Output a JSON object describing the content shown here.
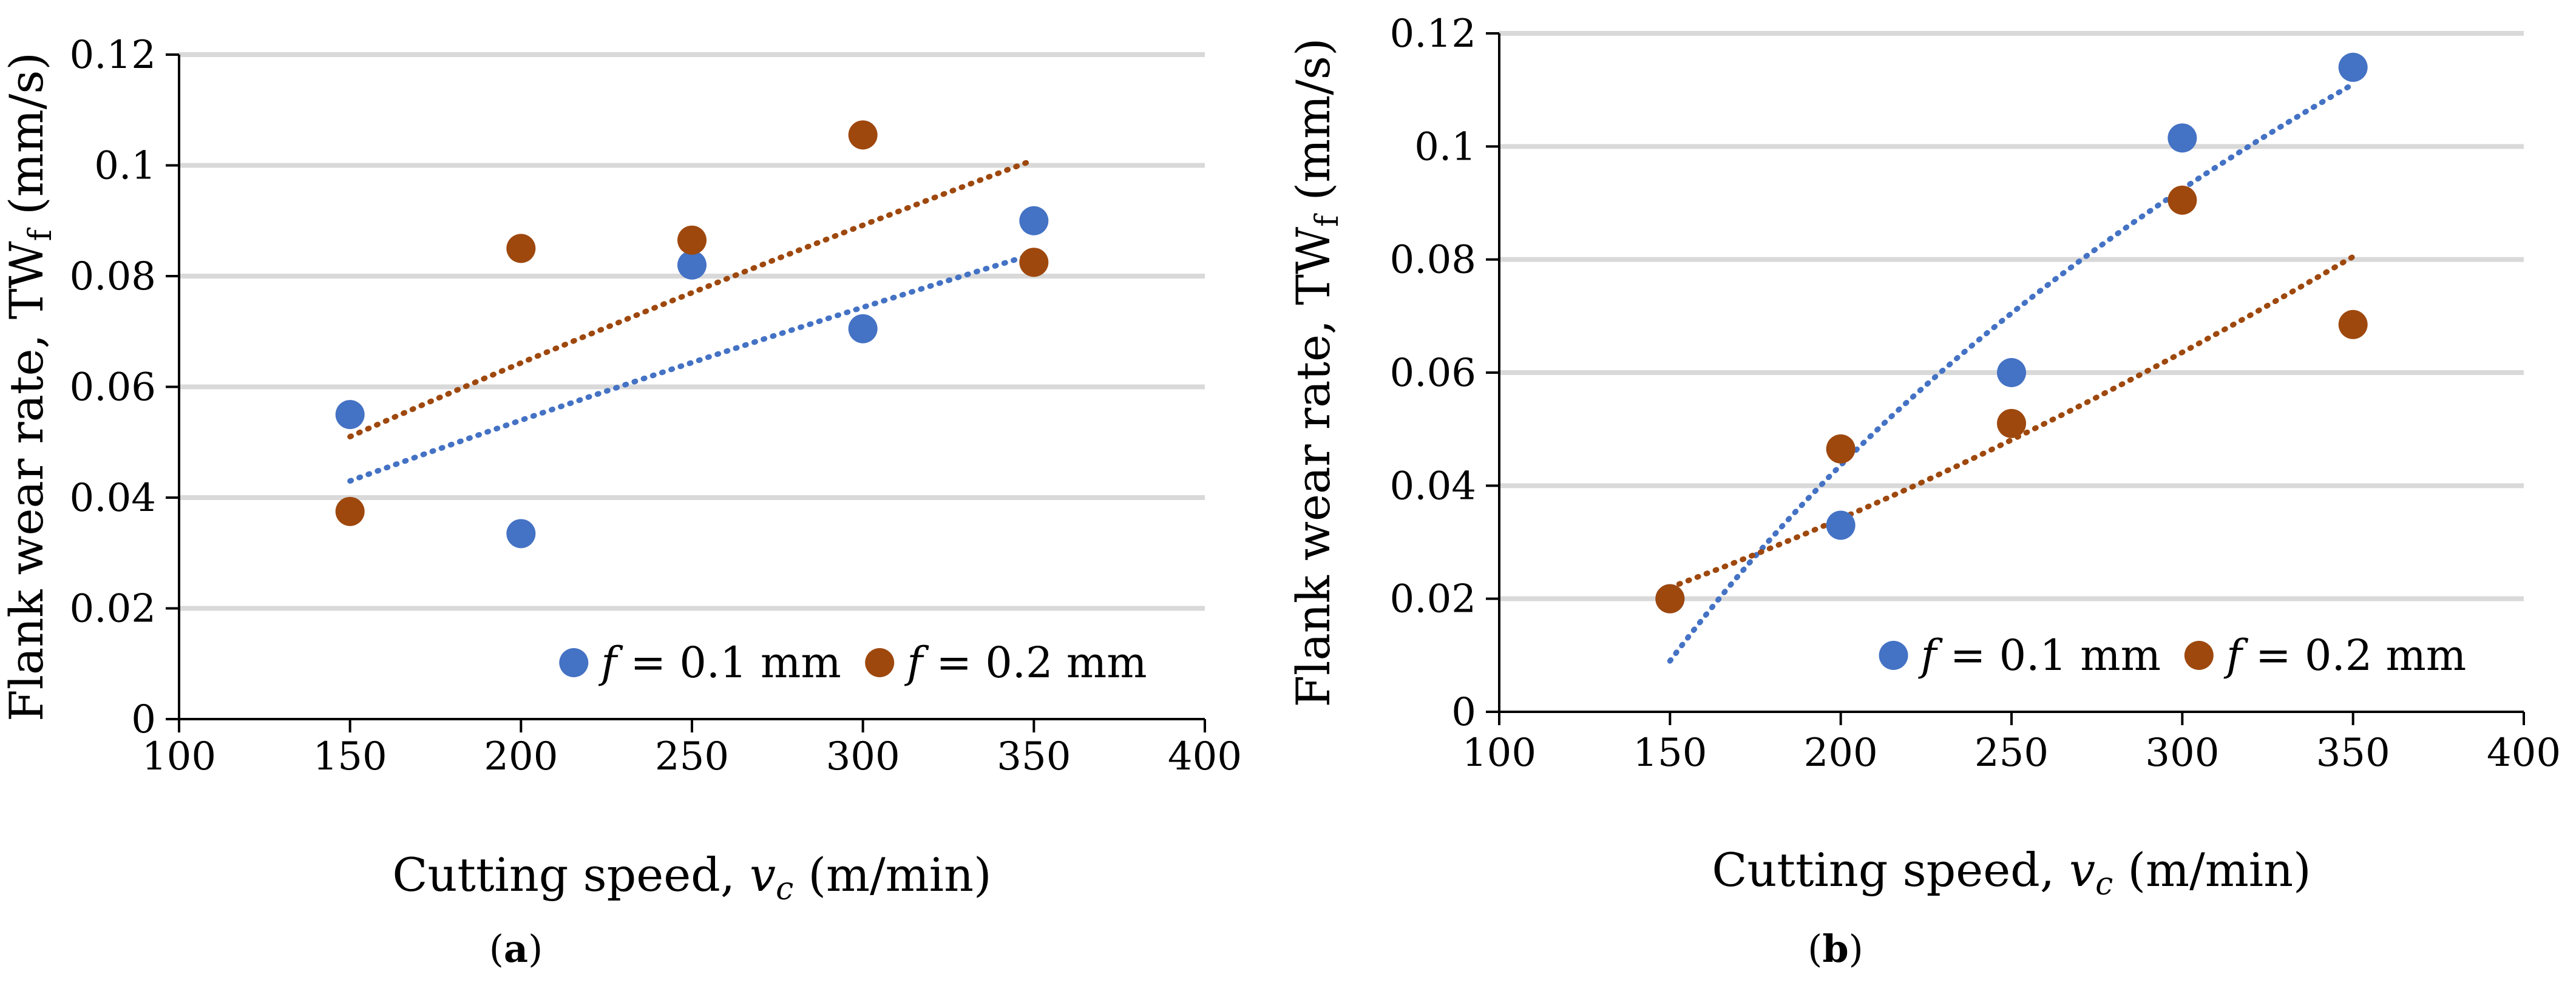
{
  "colors": {
    "series_a": "#4472C4",
    "series_b": "#9E480E",
    "gridline": "#D9D9D9",
    "axis": "#000000"
  },
  "chart_data": [
    {
      "panel_label": "a",
      "type": "scatter",
      "xlabel_main": "Cutting speed, ",
      "xlabel_var": "v",
      "xlabel_sub": "c",
      "xlabel_unit": " (m/min)",
      "ylabel_main": "Flank wear rate, TW",
      "ylabel_sub": "f",
      "ylabel_unit": " (mm/s)",
      "xlim": [
        100,
        400
      ],
      "ylim": [
        0,
        0.12
      ],
      "xticks": [
        100,
        150,
        200,
        250,
        300,
        350,
        400
      ],
      "yticks": [
        0,
        0.02,
        0.04,
        0.06,
        0.08,
        0.1,
        0.12
      ],
      "grid": "horizontal",
      "legend_position": "bottom-right",
      "series": [
        {
          "legend_f": "f",
          "legend_rest": " = 0.1 mm",
          "x": [
            150,
            200,
            250,
            300,
            350
          ],
          "y": [
            0.055,
            0.0335,
            0.082,
            0.0705,
            0.09
          ],
          "trendline": {
            "type": "power",
            "x": [
              150,
              350
            ],
            "y": [
              0.043,
              0.084
            ]
          }
        },
        {
          "legend_f": "f",
          "legend_rest": " = 0.2 mm",
          "x": [
            150,
            200,
            250,
            300,
            350
          ],
          "y": [
            0.0375,
            0.085,
            0.0865,
            0.1055,
            0.0825
          ],
          "trendline": {
            "type": "power",
            "x": [
              150,
              350
            ],
            "y": [
              0.051,
              0.101
            ]
          }
        }
      ]
    },
    {
      "panel_label": "b",
      "type": "scatter",
      "xlabel_main": "Cutting speed, ",
      "xlabel_var": "v",
      "xlabel_sub": "c",
      "xlabel_unit": " (m/min)",
      "ylabel_main": "Flank wear rate, TW",
      "ylabel_sub": "f",
      "ylabel_unit": " (mm/s)",
      "xlim": [
        100,
        400
      ],
      "ylim": [
        0,
        0.12
      ],
      "xticks": [
        100,
        150,
        200,
        250,
        300,
        350,
        400
      ],
      "yticks": [
        0,
        0.02,
        0.04,
        0.06,
        0.08,
        0.1,
        0.12
      ],
      "grid": "horizontal",
      "legend_position": "bottom-right",
      "series": [
        {
          "legend_f": "f",
          "legend_rest": " = 0.1 mm",
          "x": [
            150,
            200,
            250,
            300,
            350
          ],
          "y": [
            0.02,
            0.033,
            0.06,
            0.1015,
            0.114
          ],
          "trendline": {
            "type": "log",
            "x": [
              150,
              350
            ],
            "y": [
              0.009,
              0.111
            ]
          }
        },
        {
          "legend_f": "f",
          "legend_rest": " = 0.2 mm",
          "x": [
            150,
            200,
            250,
            300,
            350
          ],
          "y": [
            0.02,
            0.0465,
            0.051,
            0.0905,
            0.0685
          ],
          "trendline": {
            "type": "power",
            "x": [
              150,
              350
            ],
            "y": [
              0.022,
              0.0805
            ]
          }
        }
      ]
    }
  ]
}
